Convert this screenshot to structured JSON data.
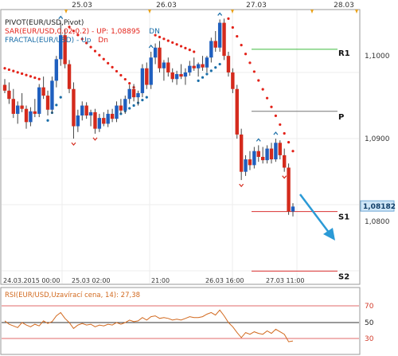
{
  "legend": {
    "pivot": "PIVOT(EUR/USD,Pivot)",
    "sar_prefix": "SAR(EUR/USD,0.02,0.2) - ",
    "sar_up": "UP: 1,08895",
    "sar_dn": "DN",
    "fractal_prefix": "FRACTAL(EUR/USD) - ",
    "fractal_up": "Up",
    "fractal_dn": "Dn"
  },
  "top_axis_dates": [
    "25.03",
    "26.03",
    "27.03",
    "28.03"
  ],
  "bottom_axis_labels": [
    "24.03.2015 00:00",
    "25.03 02:00",
    "21:00",
    "26.03 16:00",
    "27.03 11:00"
  ],
  "price_ticks": [
    "1,1000",
    "1,0900",
    "1,0800"
  ],
  "current_price": "1,08182",
  "pivot_labels": {
    "r1": "R1",
    "p": "P",
    "s1": "S1",
    "s2": "S2"
  },
  "rsi": {
    "label": "RSI(EUR/USD,Uzavírací cena, 14): 27,38",
    "levels": [
      "70",
      "50",
      "30"
    ]
  },
  "colors": {
    "bull": "#1f5fbf",
    "bear": "#d42a1c",
    "sar_down": "#e32219",
    "sar_up": "#1a6ea8",
    "r1": "#3dbb3d",
    "p": "#777777",
    "s": "#d93030",
    "arrow": "#2b9ad6",
    "rsi_line": "#d2691e"
  },
  "chart_data": {
    "type": "candlestick",
    "symbol": "EUR/USD",
    "timeframe": "H1",
    "y_range": [
      1.0725,
      1.1055
    ],
    "candles": [
      [
        1.0965,
        1.0972,
        1.0955,
        1.0958
      ],
      [
        1.0958,
        1.0968,
        1.0942,
        1.0948
      ],
      [
        1.0948,
        1.096,
        1.0925,
        1.093
      ],
      [
        1.093,
        1.0945,
        1.0918,
        1.094
      ],
      [
        1.094,
        1.0955,
        1.0932,
        1.0936
      ],
      [
        1.0936,
        1.094,
        1.0912,
        1.092
      ],
      [
        1.092,
        1.0938,
        1.0915,
        1.0933
      ],
      [
        1.0933,
        1.0948,
        1.0926,
        1.093
      ],
      [
        1.093,
        1.0966,
        1.0926,
        1.0962
      ],
      [
        1.0962,
        1.0975,
        1.0948,
        1.0952
      ],
      [
        1.0952,
        1.0958,
        1.0928,
        1.0935
      ],
      [
        1.0935,
        1.0975,
        1.093,
        1.097
      ],
      [
        1.097,
        1.1,
        1.0962,
        1.0996
      ],
      [
        1.0996,
        1.104,
        1.0988,
        1.1025
      ],
      [
        1.1025,
        1.1032,
        1.0985,
        1.099
      ],
      [
        1.099,
        1.0995,
        1.0955,
        1.096
      ],
      [
        1.096,
        1.0968,
        1.09,
        1.0915
      ],
      [
        1.0915,
        1.0935,
        1.0908,
        1.0928
      ],
      [
        1.0928,
        1.0945,
        1.0922,
        1.094
      ],
      [
        1.094,
        1.0944,
        1.0924,
        1.0928
      ],
      [
        1.0928,
        1.0935,
        1.0915,
        1.0932
      ],
      [
        1.0932,
        1.0936,
        1.0906,
        1.0912
      ],
      [
        1.0912,
        1.093,
        1.0908,
        1.0925
      ],
      [
        1.0925,
        1.0932,
        1.0915,
        1.0918
      ],
      [
        1.0918,
        1.0935,
        1.0914,
        1.093
      ],
      [
        1.093,
        1.0936,
        1.092,
        1.0924
      ],
      [
        1.0924,
        1.0945,
        1.092,
        1.094
      ],
      [
        1.094,
        1.0948,
        1.093,
        1.0934
      ],
      [
        1.0934,
        1.0952,
        1.093,
        1.0948
      ],
      [
        1.0948,
        1.0965,
        1.0942,
        1.096
      ],
      [
        1.096,
        1.0966,
        1.0945,
        1.095
      ],
      [
        1.095,
        1.0958,
        1.094,
        1.0955
      ],
      [
        1.0955,
        1.099,
        1.095,
        1.0985
      ],
      [
        1.0985,
        1.0992,
        1.096,
        1.0965
      ],
      [
        1.0965,
        1.1005,
        1.096,
        1.0998
      ],
      [
        1.0998,
        1.1015,
        1.099,
        1.101
      ],
      [
        1.101,
        1.1018,
        1.098,
        1.0985
      ],
      [
        1.0985,
        1.0995,
        1.097,
        1.0992
      ],
      [
        1.0992,
        1.0998,
        1.0975,
        1.098
      ],
      [
        1.098,
        1.0985,
        1.0968,
        1.0972
      ],
      [
        1.0972,
        1.0982,
        1.0965,
        1.0978
      ],
      [
        1.0978,
        1.099,
        1.0972,
        1.0975
      ],
      [
        1.0975,
        1.0985,
        1.0965,
        1.098
      ],
      [
        1.098,
        1.0994,
        1.0976,
        1.0988
      ],
      [
        1.0988,
        1.0998,
        1.0982,
        1.0985
      ],
      [
        1.0985,
        1.0992,
        1.0975,
        1.099
      ],
      [
        1.099,
        1.1,
        1.0982,
        1.0986
      ],
      [
        1.0986,
        1.1,
        1.098,
        1.0998
      ],
      [
        1.0998,
        1.1022,
        1.0992,
        1.1018
      ],
      [
        1.1018,
        1.103,
        1.1005,
        1.101
      ],
      [
        1.101,
        1.1044,
        1.1005,
        1.104
      ],
      [
        1.104,
        1.1045,
        1.0995,
        1.1
      ],
      [
        1.1,
        1.1005,
        1.0975,
        1.098
      ],
      [
        1.098,
        1.0985,
        1.0955,
        1.096
      ],
      [
        1.096,
        1.0965,
        1.09,
        1.0905
      ],
      [
        1.0905,
        1.0912,
        1.085,
        1.086
      ],
      [
        1.086,
        1.088,
        1.0855,
        1.0875
      ],
      [
        1.0875,
        1.0885,
        1.0862,
        1.0868
      ],
      [
        1.0868,
        1.089,
        1.0864,
        1.0885
      ],
      [
        1.0885,
        1.0892,
        1.0872,
        1.0878
      ],
      [
        1.0878,
        1.089,
        1.087,
        1.0874
      ],
      [
        1.0874,
        1.0892,
        1.087,
        1.0888
      ],
      [
        1.0888,
        1.0895,
        1.087,
        1.0875
      ],
      [
        1.0875,
        1.09,
        1.0872,
        1.0895
      ],
      [
        1.0895,
        1.0898,
        1.0875,
        1.088
      ],
      [
        1.088,
        1.0888,
        1.086,
        1.0865
      ],
      [
        1.0865,
        1.087,
        1.0808,
        1.0812
      ],
      [
        1.0812,
        1.0822,
        1.0806,
        1.0818
      ]
    ],
    "pivot_levels": {
      "R1": 1.1008,
      "P": 1.0933,
      "S1": 1.0812,
      "S2": 1.074
    },
    "last_price": 1.08182,
    "sar_up_value": 1.08895,
    "rsi": {
      "levels": [
        70,
        50,
        30
      ],
      "last_value": 27.38,
      "values": [
        52,
        48,
        46,
        44,
        50,
        47,
        45,
        48,
        46,
        52,
        49,
        51,
        58,
        62,
        55,
        50,
        43,
        47,
        49,
        47,
        48,
        45,
        47,
        46,
        48,
        47,
        50,
        48,
        50,
        53,
        51,
        52,
        56,
        53,
        57,
        58,
        55,
        56,
        55,
        53,
        54,
        53,
        55,
        57,
        56,
        56,
        57,
        60,
        62,
        59,
        65,
        58,
        50,
        45,
        38,
        32,
        38,
        36,
        39,
        37,
        36,
        40,
        37,
        42,
        39,
        36,
        27,
        28
      ]
    }
  }
}
